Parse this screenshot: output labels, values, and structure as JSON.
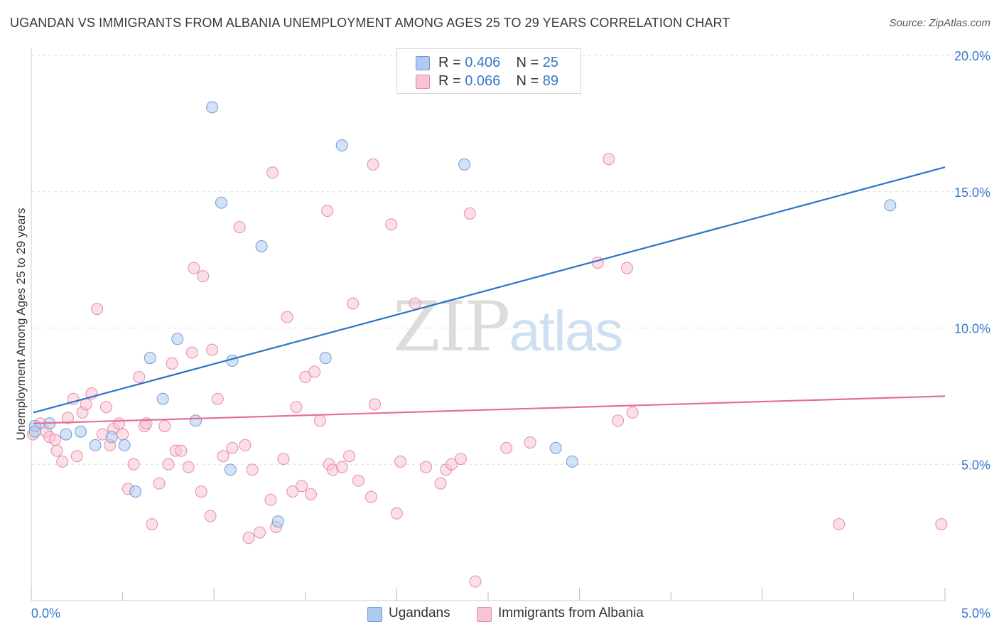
{
  "title": "UGANDAN VS IMMIGRANTS FROM ALBANIA UNEMPLOYMENT AMONG AGES 25 TO 29 YEARS CORRELATION CHART",
  "source": "Source: ZipAtlas.com",
  "watermark": {
    "zip": "ZIP",
    "atlas": "atlas"
  },
  "legend": {
    "r_label": "R =",
    "n_label": "N =",
    "rows": [
      {
        "r": "0.406",
        "n": "25"
      },
      {
        "r": "0.066",
        "n": "89"
      }
    ]
  },
  "colors": {
    "blue_fill": "#aecbef",
    "blue_stroke": "#6f9bd6",
    "blue_line": "#2e72c8",
    "pink_fill": "#f6c4d3",
    "pink_stroke": "#e98aa8",
    "pink_line": "#e56e99",
    "tick_label": "#3a78c9",
    "grid": "#dddddd"
  },
  "chart_data": {
    "type": "scatter",
    "xlabel": "",
    "ylabel": "Unemployment Among Ages 25 to 29 years",
    "xlim": [
      0,
      5
    ],
    "ylim": [
      0,
      20
    ],
    "x_tick_labels": [
      "0.0%",
      "5.0%"
    ],
    "y_ticks": [
      5,
      10,
      15,
      20
    ],
    "y_tick_labels": [
      "5.0%",
      "10.0%",
      "15.0%",
      "20.0%"
    ],
    "grid": "horizontal dashed",
    "series": [
      {
        "name": "Ugandans",
        "color": "#aecbef",
        "trend": {
          "x": [
            0,
            5
          ],
          "y": [
            6.9,
            15.9
          ]
        },
        "points": [
          [
            0.02,
            6.4
          ],
          [
            0.1,
            6.5
          ],
          [
            0.19,
            6.1
          ],
          [
            0.27,
            6.2
          ],
          [
            0.35,
            5.7
          ],
          [
            0.44,
            6.0
          ],
          [
            0.51,
            5.7
          ],
          [
            0.57,
            4.0
          ],
          [
            0.65,
            8.9
          ],
          [
            0.72,
            7.4
          ],
          [
            0.8,
            9.6
          ],
          [
            0.9,
            6.6
          ],
          [
            0.99,
            18.1
          ],
          [
            1.04,
            14.6
          ],
          [
            1.09,
            4.8
          ],
          [
            1.1,
            8.8
          ],
          [
            1.26,
            13.0
          ],
          [
            1.35,
            2.9
          ],
          [
            1.61,
            8.9
          ],
          [
            1.7,
            16.7
          ],
          [
            2.37,
            16.0
          ],
          [
            2.87,
            5.6
          ],
          [
            2.96,
            5.1
          ],
          [
            4.7,
            14.5
          ],
          [
            0.02,
            6.2
          ]
        ]
      },
      {
        "name": "Immigrants from Albania",
        "color": "#f6c4d3",
        "trend": {
          "x": [
            0,
            5
          ],
          "y": [
            6.5,
            7.5
          ]
        },
        "points": [
          [
            0.01,
            6.1
          ],
          [
            0.05,
            6.5
          ],
          [
            0.08,
            6.2
          ],
          [
            0.1,
            6.0
          ],
          [
            0.13,
            5.9
          ],
          [
            0.14,
            5.5
          ],
          [
            0.17,
            5.1
          ],
          [
            0.2,
            6.7
          ],
          [
            0.23,
            7.4
          ],
          [
            0.25,
            5.3
          ],
          [
            0.28,
            6.9
          ],
          [
            0.3,
            7.2
          ],
          [
            0.33,
            7.6
          ],
          [
            0.36,
            10.7
          ],
          [
            0.39,
            6.1
          ],
          [
            0.41,
            7.1
          ],
          [
            0.43,
            5.7
          ],
          [
            0.45,
            6.3
          ],
          [
            0.48,
            6.5
          ],
          [
            0.5,
            6.1
          ],
          [
            0.53,
            4.1
          ],
          [
            0.56,
            5.0
          ],
          [
            0.59,
            8.2
          ],
          [
            0.62,
            6.4
          ],
          [
            0.63,
            6.5
          ],
          [
            0.66,
            2.8
          ],
          [
            0.7,
            4.3
          ],
          [
            0.73,
            6.4
          ],
          [
            0.75,
            5.0
          ],
          [
            0.77,
            8.7
          ],
          [
            0.79,
            5.5
          ],
          [
            0.82,
            5.5
          ],
          [
            0.86,
            4.9
          ],
          [
            0.88,
            9.1
          ],
          [
            0.89,
            12.2
          ],
          [
            0.93,
            4.0
          ],
          [
            0.94,
            11.9
          ],
          [
            0.98,
            3.1
          ],
          [
            0.99,
            9.2
          ],
          [
            1.02,
            7.4
          ],
          [
            1.05,
            5.3
          ],
          [
            1.1,
            5.6
          ],
          [
            1.14,
            13.7
          ],
          [
            1.17,
            5.7
          ],
          [
            1.19,
            2.3
          ],
          [
            1.21,
            4.8
          ],
          [
            1.25,
            2.5
          ],
          [
            1.31,
            3.7
          ],
          [
            1.32,
            15.7
          ],
          [
            1.34,
            2.7
          ],
          [
            1.38,
            5.2
          ],
          [
            1.4,
            10.4
          ],
          [
            1.43,
            4.0
          ],
          [
            1.45,
            7.1
          ],
          [
            1.48,
            4.2
          ],
          [
            1.5,
            8.2
          ],
          [
            1.53,
            3.9
          ],
          [
            1.55,
            8.4
          ],
          [
            1.58,
            6.6
          ],
          [
            1.62,
            14.3
          ],
          [
            1.63,
            5.0
          ],
          [
            1.65,
            4.8
          ],
          [
            1.7,
            4.9
          ],
          [
            1.74,
            5.3
          ],
          [
            1.76,
            10.9
          ],
          [
            1.79,
            4.4
          ],
          [
            1.86,
            3.8
          ],
          [
            1.87,
            16.0
          ],
          [
            1.88,
            7.2
          ],
          [
            1.97,
            13.8
          ],
          [
            2.0,
            3.2
          ],
          [
            2.02,
            5.1
          ],
          [
            2.1,
            10.9
          ],
          [
            2.16,
            4.9
          ],
          [
            2.24,
            4.3
          ],
          [
            2.27,
            4.8
          ],
          [
            2.3,
            5.0
          ],
          [
            2.35,
            5.2
          ],
          [
            2.4,
            14.2
          ],
          [
            2.43,
            0.7
          ],
          [
            2.6,
            5.6
          ],
          [
            2.73,
            5.8
          ],
          [
            3.1,
            12.4
          ],
          [
            3.16,
            16.2
          ],
          [
            3.21,
            6.6
          ],
          [
            3.26,
            12.2
          ],
          [
            3.29,
            6.9
          ],
          [
            4.42,
            2.8
          ],
          [
            4.98,
            2.8
          ]
        ]
      }
    ]
  }
}
